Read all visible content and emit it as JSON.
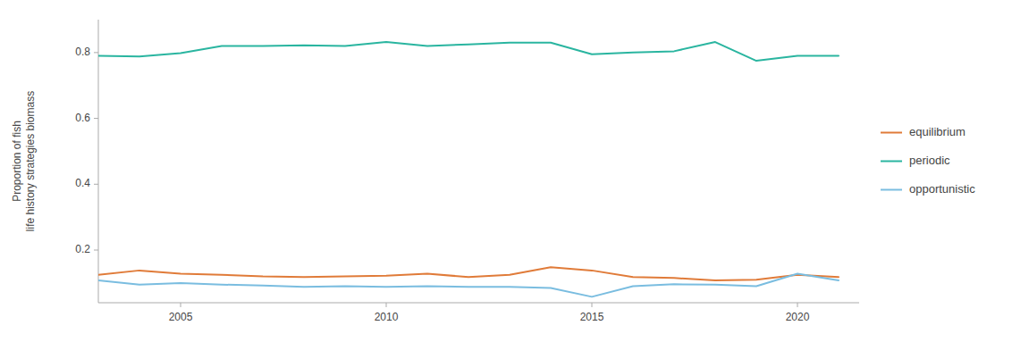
{
  "chart_data": {
    "type": "line",
    "y_label": "Proportion of fish\nlife history strategies biomass",
    "x": [
      2003,
      2004,
      2005,
      2006,
      2007,
      2008,
      2009,
      2010,
      2011,
      2012,
      2013,
      2014,
      2015,
      2016,
      2017,
      2018,
      2019,
      2020,
      2021
    ],
    "series": [
      {
        "name": "equilibrium",
        "color": "#e07b39",
        "values": [
          0.125,
          0.138,
          0.128,
          0.125,
          0.12,
          0.118,
          0.12,
          0.122,
          0.128,
          0.118,
          0.125,
          0.148,
          0.138,
          0.118,
          0.115,
          0.108,
          0.11,
          0.125,
          0.118
        ]
      },
      {
        "name": "periodic",
        "color": "#2ab5a0",
        "values": [
          0.79,
          0.788,
          0.798,
          0.82,
          0.82,
          0.822,
          0.82,
          0.832,
          0.82,
          0.825,
          0.83,
          0.83,
          0.795,
          0.8,
          0.804,
          0.832,
          0.775,
          0.79,
          0.79
        ]
      },
      {
        "name": "opportunistic",
        "color": "#7abde0",
        "values": [
          0.108,
          0.095,
          0.1,
          0.095,
          0.092,
          0.088,
          0.09,
          0.088,
          0.09,
          0.088,
          0.088,
          0.085,
          0.058,
          0.09,
          0.096,
          0.095,
          0.09,
          0.128,
          0.108
        ]
      }
    ],
    "xlim": [
      2003.0,
      2021.5
    ],
    "ylim": [
      0.04,
      0.9
    ],
    "xticks": [
      2005,
      2010,
      2015,
      2020
    ],
    "yticks": [
      0.2,
      0.4,
      0.6,
      0.8
    ],
    "grid": false,
    "legend": "right"
  }
}
